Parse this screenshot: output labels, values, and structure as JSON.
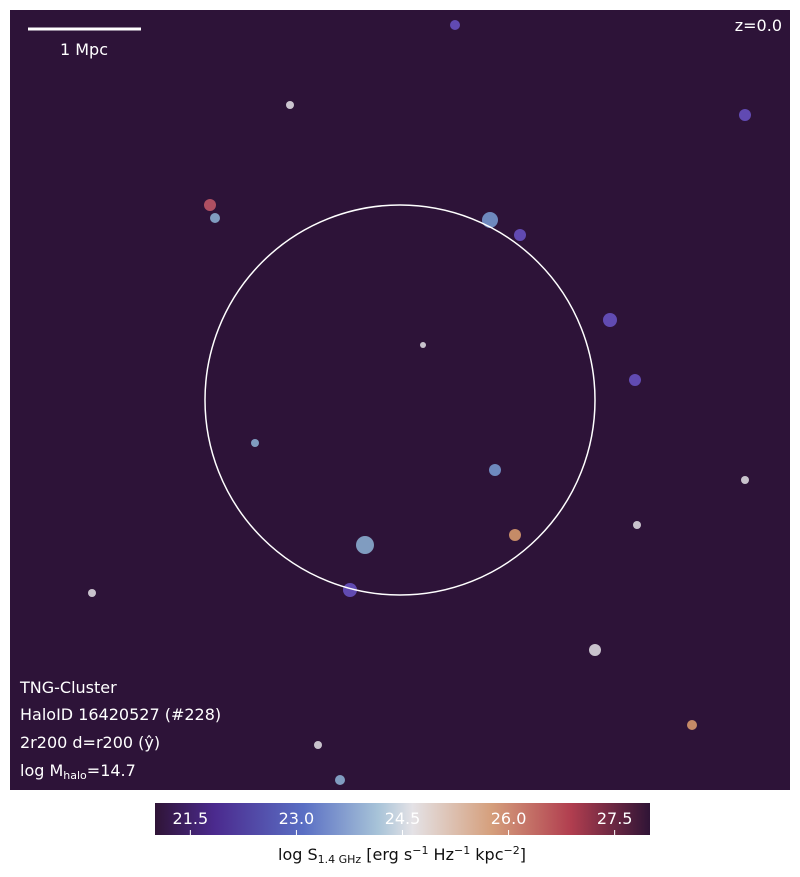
{
  "image": {
    "scale_bar_label": "1 Mpc",
    "redshift": "z=0.0",
    "info": {
      "line1": "TNG-Cluster",
      "line2": "HaloID 16420527 (#228)",
      "line3": "2r200 d=r200 (ŷ)",
      "mass_prefix": "log M",
      "mass_sub": "halo",
      "mass_suffix": "=14.7"
    }
  },
  "colorbar": {
    "clim": [
      21,
      28
    ],
    "ticks": [
      {
        "value": 21.5,
        "label": "21.5"
      },
      {
        "value": 23.0,
        "label": "23.0"
      },
      {
        "value": 24.5,
        "label": "24.5"
      },
      {
        "value": 26.0,
        "label": "26.0"
      },
      {
        "value": 27.5,
        "label": "27.5"
      }
    ],
    "label": {
      "p1": "log S",
      "sub": "1.4 GHz",
      "p2": " [erg s",
      "e1": "−1",
      "p3": " Hz",
      "e2": "−1",
      "p4": " kpc",
      "e3": "−2",
      "p5": "]"
    }
  }
}
